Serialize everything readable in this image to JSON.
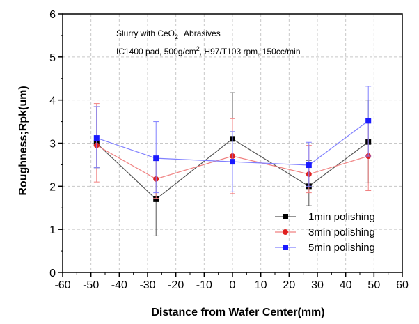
{
  "chart_data": {
    "type": "line",
    "title": "",
    "xlabel": "Distance from Wafer Center(mm)",
    "ylabel": "Roughness;Rpk(um)",
    "xlim": [
      -60,
      60
    ],
    "ylim": [
      0,
      6
    ],
    "xticks": [
      -60,
      -50,
      -40,
      -30,
      -20,
      -10,
      0,
      10,
      20,
      30,
      40,
      50,
      60
    ],
    "yticks": [
      0,
      1,
      2,
      3,
      4,
      5,
      6
    ],
    "grid": true,
    "legend_position": "bottom-right",
    "annotations": {
      "line1_main": "Slurry with CeO",
      "line1_sub": "2",
      "line1_tail": "Abrasives",
      "line2_main": "IC1400 pad, 500g/cm",
      "line2_sup": "2",
      "line2_tail": ", H97/T103 rpm, 150cc/min"
    },
    "x": [
      -48,
      -27,
      0,
      27,
      48
    ],
    "series": [
      {
        "name": "1min polishing",
        "color": "#000000",
        "line_color": "#555555",
        "marker": "square",
        "values": [
          3.0,
          1.7,
          3.1,
          2.0,
          3.03
        ],
        "err_low": [
          2.43,
          0.85,
          2.03,
          1.55,
          2.08
        ],
        "err_high": [
          3.85,
          2.6,
          4.17,
          2.6,
          4.0
        ]
      },
      {
        "name": "3min polishing",
        "color": "#e02020",
        "line_color": "#f08080",
        "marker": "circle",
        "values": [
          2.95,
          2.17,
          2.7,
          2.28,
          2.7
        ],
        "err_low": [
          2.1,
          1.72,
          1.83,
          1.85,
          1.9
        ],
        "err_high": [
          3.92,
          2.6,
          3.57,
          2.95,
          3.52
        ]
      },
      {
        "name": "5min polishing",
        "color": "#1a1aff",
        "line_color": "#8080ff",
        "marker": "square",
        "values": [
          3.12,
          2.65,
          2.57,
          2.49,
          3.52
        ],
        "err_low": [
          2.43,
          1.85,
          1.87,
          2.0,
          2.7
        ],
        "err_high": [
          3.85,
          3.5,
          3.27,
          3.02,
          4.32
        ]
      }
    ]
  }
}
